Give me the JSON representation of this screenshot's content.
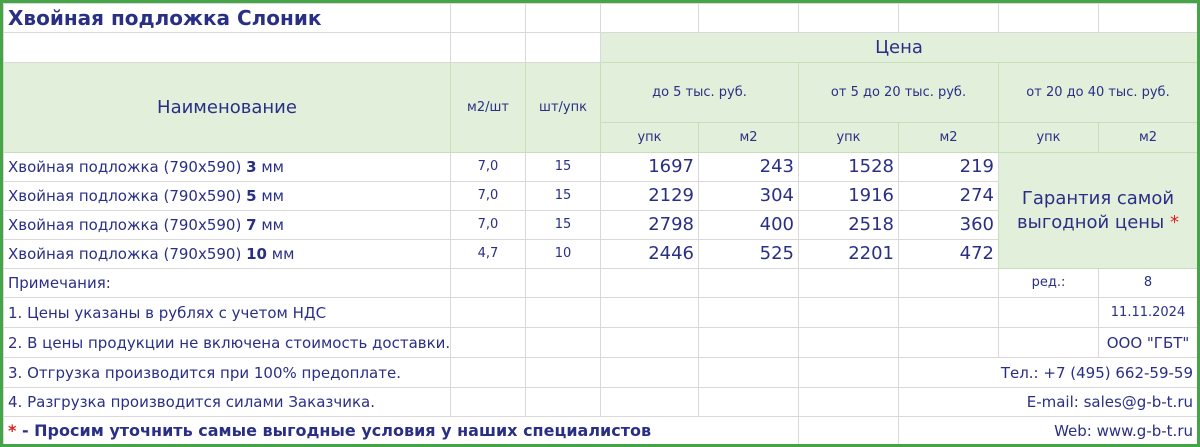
{
  "header": {
    "title": "Хвойная подложка Слоник",
    "price": "Цена",
    "name": "Наименование",
    "m2_per_piece": "м2/шт",
    "pieces_per_pack": "шт/упк",
    "ranges": [
      "до 5 тыс. руб.",
      "от 5 до 20 тыс. руб.",
      "от 20 до 40 тыс. руб."
    ],
    "units": [
      "упк",
      "м2",
      "упк",
      "м2",
      "упк",
      "м2"
    ]
  },
  "rows": [
    {
      "name": "Хвойная подложка (790x590)",
      "thickness": "3",
      "unit": "мм",
      "m2": "7,0",
      "pack": 15,
      "prices": [
        1697,
        243,
        1528,
        219
      ]
    },
    {
      "name": "Хвойная подложка (790x590)",
      "thickness": "5",
      "unit": "мм",
      "m2": "7,0",
      "pack": 15,
      "prices": [
        2129,
        304,
        1916,
        274
      ]
    },
    {
      "name": "Хвойная подложка (790x590)",
      "thickness": "7",
      "unit": "мм",
      "m2": "7,0",
      "pack": 15,
      "prices": [
        2798,
        400,
        2518,
        360
      ]
    },
    {
      "name": "Хвойная подложка (790x590)",
      "thickness": "10",
      "unit": "мм",
      "m2": "4,7",
      "pack": 10,
      "prices": [
        2446,
        525,
        2201,
        472
      ]
    }
  ],
  "guarantee": {
    "text": "Гарантия самой выгодной цены",
    "mark": "*"
  },
  "notes": {
    "title": "Примечания:",
    "items": [
      "1. Цены указаны в рублях с учетом НДС",
      "2. В цены продукции не включена стоимость доставки.",
      "3. Отгрузка производится при 100% предоплате.",
      "4. Разгрузка производится силами Заказчика."
    ]
  },
  "info": {
    "rev_label": "ред.:",
    "rev": 8,
    "date": "11.11.2024",
    "company": "ООО \"ГБТ\"",
    "phone": "Тел.: +7 (495) 662-59-59",
    "email": "E-mail: sales@g-b-t.ru",
    "web": "Web: www.g-b-t.ru"
  },
  "footer": {
    "mark": "*",
    "text": "- Просим уточнить самые выгодные условия у наших специалистов"
  }
}
